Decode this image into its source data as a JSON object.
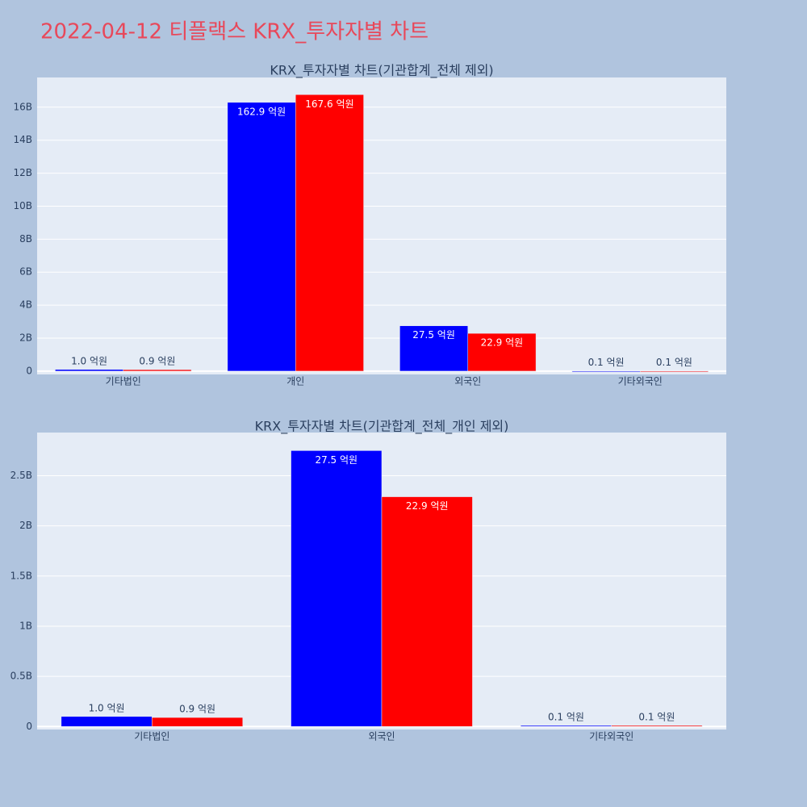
{
  "title": "2022-04-12 티플랙스 KRX_투자자별 차트",
  "charts": [
    {
      "chart_data": {
        "type": "bar",
        "title": "KRX_투자자별 차트(기관합계_전체 제외)",
        "categories": [
          "기타법인",
          "개인",
          "외국인",
          "기타외국인"
        ],
        "series": [
          {
            "color": "#0000ff",
            "values": [
              100000000,
              16290000000,
              2750000000,
              10000000
            ],
            "value_labels": [
              "1.0 억원",
              "162.9 억원",
              "27.5 억원",
              "0.1 억원"
            ]
          },
          {
            "color": "#ff0000",
            "values": [
              90000000,
              16760000000,
              2290000000,
              10000000
            ],
            "value_labels": [
              "0.9 억원",
              "167.6 억원",
              "22.9 억원",
              "0.1 억원"
            ]
          }
        ],
        "ylim": [
          -200000000,
          17800000000
        ],
        "yticks": [
          0,
          {
            "value": 2000000000,
            "label": "2B"
          },
          {
            "value": 4000000000,
            "label": "4B"
          },
          {
            "value": 6000000000,
            "label": "6B"
          },
          {
            "value": 8000000000,
            "label": "8B"
          },
          {
            "value": 10000000000,
            "label": "10B"
          },
          {
            "value": 12000000000,
            "label": "12B"
          },
          {
            "value": 14000000000,
            "label": "14B"
          },
          {
            "value": 16000000000,
            "label": "16B"
          }
        ],
        "grid": true
      }
    },
    {
      "chart_data": {
        "type": "bar",
        "title": "KRX_투자자별 차트(기관합계_전체_개인 제외)",
        "categories": [
          "기타법인",
          "외국인",
          "기타외국인"
        ],
        "series": [
          {
            "color": "#0000ff",
            "values": [
              100000000,
              2750000000,
              10000000
            ],
            "value_labels": [
              "1.0 억원",
              "27.5 억원",
              "0.1 억원"
            ]
          },
          {
            "color": "#ff0000",
            "values": [
              90000000,
              2290000000,
              10000000
            ],
            "value_labels": [
              "0.9 억원",
              "22.9 억원",
              "0.1 억원"
            ]
          }
        ],
        "ylim": [
          -30000000,
          2930000000
        ],
        "yticks": [
          0,
          {
            "value": 500000000,
            "label": "0.5B"
          },
          {
            "value": 1000000000,
            "label": "1B"
          },
          {
            "value": 1500000000,
            "label": "1.5B"
          },
          {
            "value": 2000000000,
            "label": "2B"
          },
          {
            "value": 2500000000,
            "label": "2.5B"
          }
        ],
        "grid": true
      }
    }
  ]
}
